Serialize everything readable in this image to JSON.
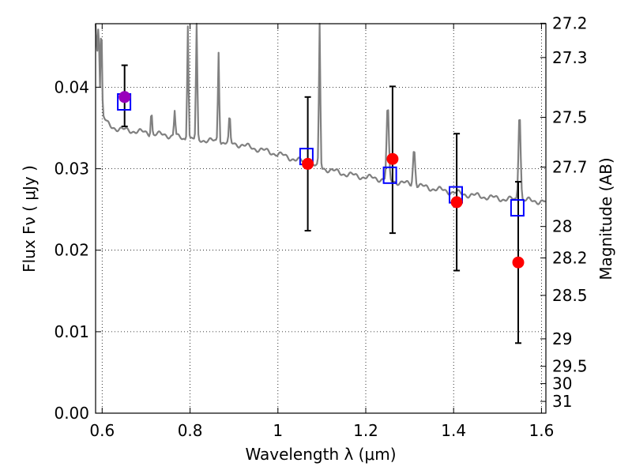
{
  "chart_data": {
    "type": "scatter",
    "xlabel": "Wavelength  λ (μm)",
    "ylabel": "Flux  Fν  ( μJy )",
    "y2label": "Magnitude (AB)",
    "xlim": [
      0.585,
      1.61
    ],
    "ylim": [
      0.0,
      0.0478
    ],
    "grid": true,
    "x_ticks": [
      {
        "value": 0.6,
        "label": "0.6"
      },
      {
        "value": 0.8,
        "label": "0.8"
      },
      {
        "value": 1.0,
        "label": "1"
      },
      {
        "value": 1.2,
        "label": "1.2"
      },
      {
        "value": 1.4,
        "label": "1.4"
      },
      {
        "value": 1.6,
        "label": "1.6"
      }
    ],
    "y_ticks": [
      {
        "value": 0.0,
        "label": "0.00"
      },
      {
        "value": 0.01,
        "label": "0.01"
      },
      {
        "value": 0.02,
        "label": "0.02"
      },
      {
        "value": 0.03,
        "label": "0.03"
      },
      {
        "value": 0.04,
        "label": "0.04"
      }
    ],
    "mag_ticks": [
      {
        "value": 27.2,
        "label": "27.2"
      },
      {
        "value": 27.3,
        "label": "27.3"
      },
      {
        "value": 27.5,
        "label": "27.5"
      },
      {
        "value": 27.7,
        "label": "27.7"
      },
      {
        "value": 28.0,
        "label": "28"
      },
      {
        "value": 28.2,
        "label": "28.2"
      },
      {
        "value": 28.5,
        "label": "28.5"
      },
      {
        "value": 29.0,
        "label": "29"
      },
      {
        "value": 29.5,
        "label": "29.5"
      },
      {
        "value": 30.0,
        "label": "30"
      },
      {
        "value": 31.0,
        "label": "31"
      }
    ],
    "colors": {
      "model": "#808080",
      "observed": "#ff0000",
      "observed_first": "#9900bb",
      "synthetic": "#0000ff",
      "errorbar": "#000000"
    },
    "model_spectrum": [
      [
        0.585,
        0.0478
      ],
      [
        0.595,
        0.0375
      ],
      [
        0.602,
        0.0365
      ],
      [
        0.61,
        0.0356
      ],
      [
        0.62,
        0.0352
      ],
      [
        0.63,
        0.035
      ],
      [
        0.645,
        0.0348
      ],
      [
        0.66,
        0.0347
      ],
      [
        0.68,
        0.0346
      ],
      [
        0.7,
        0.0344
      ],
      [
        0.72,
        0.0342
      ],
      [
        0.74,
        0.0342
      ],
      [
        0.76,
        0.034
      ],
      [
        0.78,
        0.0338
      ],
      [
        0.8,
        0.0336
      ],
      [
        0.82,
        0.0336
      ],
      [
        0.85,
        0.0334
      ],
      [
        0.88,
        0.0332
      ],
      [
        0.91,
        0.033
      ],
      [
        0.94,
        0.0326
      ],
      [
        0.97,
        0.0322
      ],
      [
        1.0,
        0.0318
      ],
      [
        1.03,
        0.0313
      ],
      [
        1.06,
        0.0308
      ],
      [
        1.09,
        0.0303
      ],
      [
        1.12,
        0.0298
      ],
      [
        1.15,
        0.0294
      ],
      [
        1.18,
        0.0291
      ],
      [
        1.21,
        0.0289
      ],
      [
        1.24,
        0.0287
      ],
      [
        1.27,
        0.0284
      ],
      [
        1.3,
        0.0281
      ],
      [
        1.33,
        0.0278
      ],
      [
        1.36,
        0.0275
      ],
      [
        1.39,
        0.0272
      ],
      [
        1.42,
        0.0269
      ],
      [
        1.45,
        0.0267
      ],
      [
        1.48,
        0.0265
      ],
      [
        1.51,
        0.0263
      ],
      [
        1.54,
        0.0262
      ],
      [
        1.57,
        0.0261
      ],
      [
        1.6,
        0.026
      ],
      [
        1.61,
        0.0259
      ]
    ],
    "emission_lines": [
      {
        "x": 0.592,
        "peak": 0.0478
      },
      {
        "x": 0.598,
        "peak": 0.0478
      },
      {
        "x": 0.712,
        "peak": 0.0372
      },
      {
        "x": 0.765,
        "peak": 0.0371
      },
      {
        "x": 0.795,
        "peak": 0.0478
      },
      {
        "x": 0.815,
        "peak": 0.0478
      },
      {
        "x": 0.865,
        "peak": 0.0445
      },
      {
        "x": 0.89,
        "peak": 0.0364
      },
      {
        "x": 1.095,
        "peak": 0.0478
      },
      {
        "x": 1.25,
        "peak": 0.0375
      },
      {
        "x": 1.31,
        "peak": 0.0325
      },
      {
        "x": 1.55,
        "peak": 0.0372
      }
    ],
    "series": [
      {
        "marker": "square",
        "points": [
          {
            "x": 0.65,
            "y": 0.0382
          },
          {
            "x": 1.065,
            "y": 0.0315
          },
          {
            "x": 1.255,
            "y": 0.0292
          },
          {
            "x": 1.405,
            "y": 0.0268
          },
          {
            "x": 1.545,
            "y": 0.0252
          }
        ]
      },
      {
        "marker": "circle",
        "points": [
          {
            "x": 0.651,
            "y": 0.0388,
            "err": [
              0.0352,
              0.0427
            ]
          },
          {
            "x": 1.068,
            "y": 0.0306,
            "err": [
              0.0224,
              0.0388
            ]
          },
          {
            "x": 1.261,
            "y": 0.0312,
            "err": [
              0.0221,
              0.0401
            ]
          },
          {
            "x": 1.407,
            "y": 0.0259,
            "err": [
              0.0175,
              0.0343
            ]
          },
          {
            "x": 1.547,
            "y": 0.0185,
            "err": [
              0.0086,
              0.0284
            ]
          }
        ]
      }
    ]
  }
}
